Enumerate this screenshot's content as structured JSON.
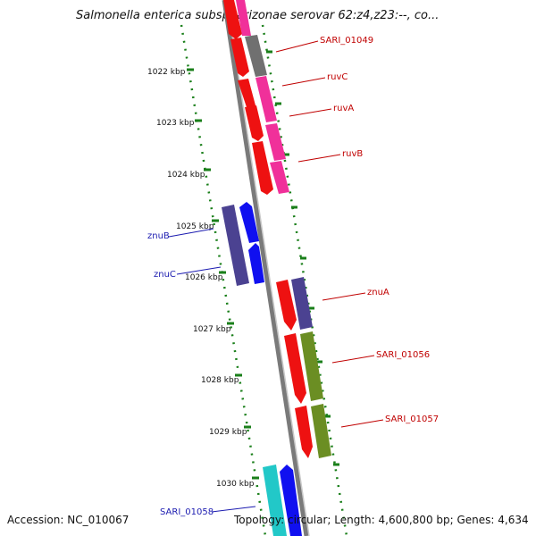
{
  "title": "Salmonella enterica subsp. arizonae serovar 62:z4,z23:--, co...",
  "ticks": [
    "1022 kbp",
    "1023 kbp",
    "1024 kbp",
    "1025 kbp",
    "1026 kbp",
    "1027 kbp",
    "1028 kbp",
    "1029 kbp",
    "1030 kbp"
  ],
  "genes": {
    "sari_01049": "SARI_01049",
    "ruvc": "ruvC",
    "ruva": "ruvA",
    "ruvb": "ruvB",
    "znub": "znuB",
    "znuc": "znuC",
    "znua": "znuA",
    "sari_01056": "SARI_01056",
    "sari_01057": "SARI_01057",
    "sari_01058": "SARI_01058"
  },
  "footer": {
    "accession": "Accession: NC_010067",
    "topology": "Topology: circular; Length: 4,600,800 bp; Genes: 4,634"
  },
  "colors": {
    "red": "#ee1111",
    "magenta": "#f0309a",
    "gray": "#707070",
    "slate": "#4b4291",
    "blue": "#1010f0",
    "olive": "#6b8e23",
    "cyan": "#22c8c8",
    "label_red": "#c00000",
    "label_blue": "#1b1bb0",
    "tick_green": "#1a7f1a"
  }
}
